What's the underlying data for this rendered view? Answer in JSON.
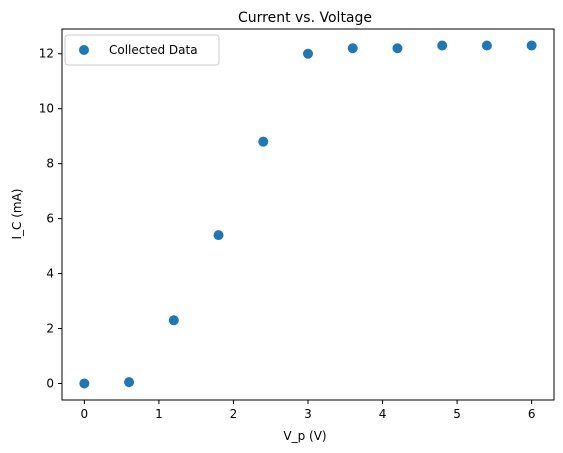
{
  "chart_data": {
    "type": "scatter",
    "title": "Current vs. Voltage",
    "xlabel": "V_p (V)",
    "ylabel": "I_C (mA)",
    "xlim": [
      -0.3,
      6.3
    ],
    "ylim": [
      -0.6,
      12.9
    ],
    "xticks": [
      0,
      1,
      2,
      3,
      4,
      5,
      6
    ],
    "xtick_labels": [
      "0",
      "1",
      "2",
      "3",
      "4",
      "5",
      "6"
    ],
    "yticks": [
      0,
      2,
      4,
      6,
      8,
      10,
      12
    ],
    "ytick_labels": [
      "0",
      "2",
      "4",
      "6",
      "8",
      "10",
      "12"
    ],
    "grid": false,
    "legend_position": "top-left",
    "series": [
      {
        "name": "Collected Data",
        "color": "#1f77b4",
        "x": [
          0.0,
          0.6,
          1.2,
          1.8,
          2.4,
          3.0,
          3.6,
          4.2,
          4.8,
          5.4,
          6.0
        ],
        "y": [
          0.0,
          0.05,
          2.3,
          5.4,
          8.8,
          12.0,
          12.2,
          12.2,
          12.3,
          12.3,
          12.3
        ]
      }
    ]
  }
}
